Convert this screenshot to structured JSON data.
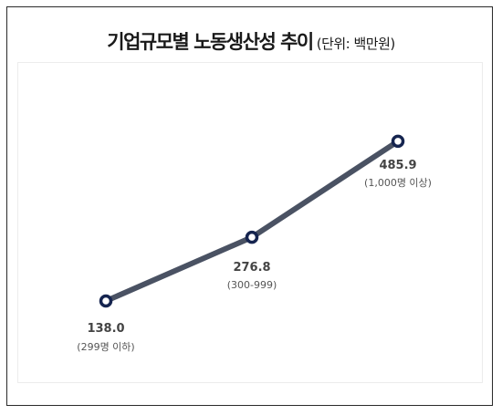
{
  "title": {
    "main": "기업규모별 노동생산성 추이",
    "unit": "(단위: 백만원)"
  },
  "colors": {
    "line": "#4a5263",
    "marker_stroke": "#15244f",
    "marker_fill": "#ffffff"
  },
  "chart_data": {
    "type": "line",
    "title": "기업규모별 노동생산성 추이",
    "subtitle": "(단위: 백만원)",
    "categories": [
      "(299명 이하)",
      "(300-999)",
      "(1,000명 이상)"
    ],
    "values": [
      138.0,
      276.8,
      485.9
    ],
    "data_labels": [
      "138.0",
      "276.8",
      "485.9"
    ],
    "grid": false,
    "legend": "none"
  }
}
